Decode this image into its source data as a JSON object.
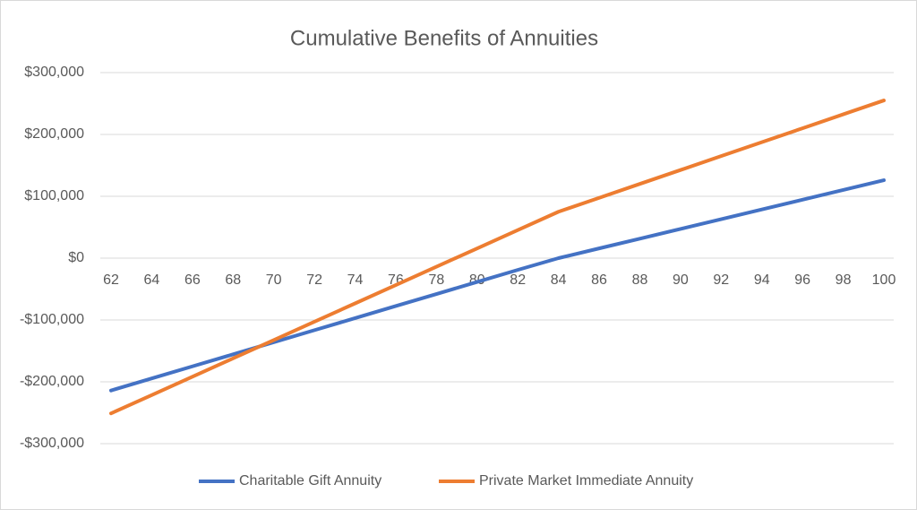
{
  "chart_data": {
    "type": "line",
    "title": "Cumulative Benefits of Annuities",
    "x": [
      62,
      64,
      66,
      68,
      70,
      72,
      74,
      76,
      78,
      80,
      82,
      84,
      86,
      88,
      90,
      92,
      94,
      96,
      98,
      100
    ],
    "xlim": [
      62,
      100
    ],
    "xticks": [
      62,
      64,
      66,
      68,
      70,
      72,
      74,
      76,
      78,
      80,
      82,
      84,
      86,
      88,
      90,
      92,
      94,
      96,
      98,
      100
    ],
    "ylim": [
      -300000,
      300000
    ],
    "yticks": [
      {
        "value": -300000,
        "label": "-$300,000"
      },
      {
        "value": -200000,
        "label": "-$200,000"
      },
      {
        "value": -100000,
        "label": "-$100,000"
      },
      {
        "value": 0,
        "label": "$0"
      },
      {
        "value": 100000,
        "label": "$100,000"
      },
      {
        "value": 200000,
        "label": "$200,000"
      },
      {
        "value": 300000,
        "label": "$300,000"
      }
    ],
    "grid": true,
    "legend": "bottom",
    "series": [
      {
        "name": "Charitable Gift Annuity",
        "color": "#4472c4",
        "values": [
          -214000,
          -194500,
          -175000,
          -155500,
          -136000,
          -116500,
          -97000,
          -77500,
          -58000,
          -38500,
          -19000,
          0,
          15750,
          31500,
          47250,
          63000,
          78750,
          94500,
          110250,
          126000
        ]
      },
      {
        "name": "Private Market Immediate Annuity",
        "color": "#ed7d31",
        "values": [
          -251000,
          -221400,
          -191700,
          -162100,
          -132500,
          -102800,
          -73200,
          -43500,
          -13900,
          15700,
          45400,
          75000,
          97500,
          120000,
          142500,
          165000,
          187500,
          210000,
          232500,
          255000
        ]
      }
    ]
  }
}
